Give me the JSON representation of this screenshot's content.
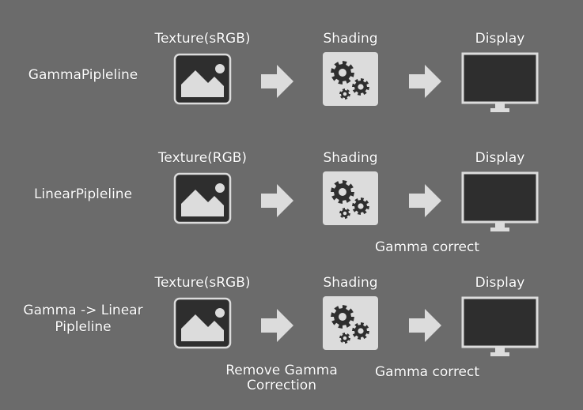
{
  "rows": [
    {
      "label": [
        "GammaPipleline"
      ],
      "texture_label": "Texture(sRGB)",
      "shading_label": "Shading",
      "display_label": "Display",
      "texture_note": [],
      "display_note": []
    },
    {
      "label": [
        "LinearPipleline"
      ],
      "texture_label": "Texture(RGB)",
      "shading_label": "Shading",
      "display_label": "Display",
      "texture_note": [],
      "display_note": [
        "Gamma correct"
      ]
    },
    {
      "label": [
        "Gamma -> Linear",
        "Pipleline"
      ],
      "texture_label": "Texture(sRGB)",
      "shading_label": "Shading",
      "display_label": "Display",
      "texture_note": [
        "Remove Gamma",
        "Correction"
      ],
      "display_note": [
        "Gamma correct"
      ]
    }
  ],
  "icons": {
    "texture": "image-icon",
    "shading": "gears-icon",
    "display": "monitor-icon",
    "flow": "arrow-right-icon"
  },
  "colors": {
    "background": "#6b6b6b",
    "icon_dark": "#2e2e2e",
    "icon_light": "#dcdcdc",
    "arrow": "#dcdcdc",
    "text": "#ffffff"
  }
}
